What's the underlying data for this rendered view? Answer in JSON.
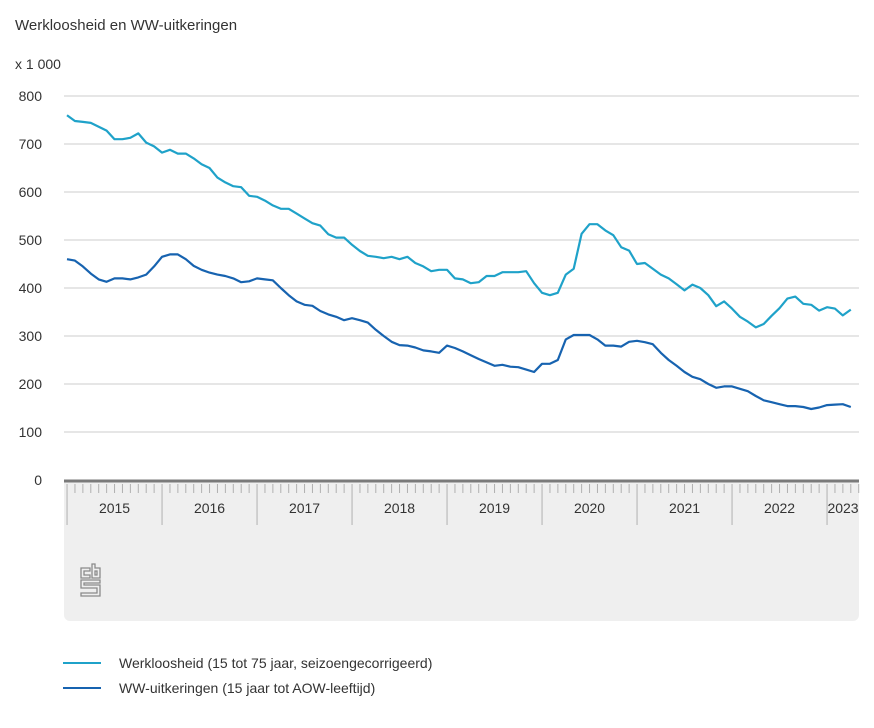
{
  "chart_data": {
    "type": "line",
    "title": "Werkloosheid en WW-uitkeringen",
    "ylabel": "x 1 000",
    "xlabel": "",
    "ylim": [
      0,
      800
    ],
    "yticks": [
      0,
      100,
      200,
      300,
      400,
      500,
      600,
      700,
      800
    ],
    "grid": true,
    "x_start": "2015-01",
    "x_frequency": "monthly",
    "x_tick_labels": [
      "2015",
      "2016",
      "2017",
      "2018",
      "2019",
      "2020",
      "2021",
      "2022",
      "2023"
    ],
    "legend_position": "bottom",
    "series": [
      {
        "name": "Werkloosheid (15 tot 75 jaar, seizoengecorrigeerd)",
        "color": "#1fa2c9",
        "values": [
          760,
          748,
          746,
          744,
          736,
          728,
          710,
          710,
          713,
          722,
          703,
          695,
          682,
          688,
          680,
          680,
          670,
          658,
          650,
          630,
          620,
          612,
          610,
          592,
          590,
          582,
          572,
          565,
          565,
          555,
          545,
          535,
          530,
          512,
          505,
          505,
          490,
          477,
          467,
          465,
          462,
          465,
          460,
          465,
          452,
          445,
          435,
          438,
          438,
          420,
          418,
          410,
          412,
          425,
          425,
          433,
          433,
          433,
          435,
          410,
          390,
          385,
          390,
          428,
          440,
          513,
          533,
          533,
          520,
          510,
          485,
          478,
          450,
          452,
          440,
          428,
          420,
          408,
          395,
          407,
          400,
          385,
          362,
          372,
          357,
          340,
          330,
          318,
          325,
          342,
          358,
          378,
          382,
          367,
          365,
          353,
          360,
          357,
          343,
          355
        ]
      },
      {
        "name": "WW-uitkeringen (15 jaar tot AOW-leeftijd)",
        "color": "#1763b0",
        "values": [
          460,
          457,
          445,
          430,
          418,
          413,
          420,
          420,
          418,
          422,
          428,
          445,
          465,
          470,
          470,
          460,
          446,
          438,
          432,
          428,
          425,
          420,
          412,
          414,
          420,
          418,
          416,
          400,
          385,
          372,
          365,
          363,
          352,
          345,
          340,
          333,
          337,
          333,
          328,
          313,
          300,
          288,
          281,
          280,
          276,
          270,
          268,
          265,
          280,
          275,
          268,
          260,
          252,
          245,
          238,
          240,
          236,
          235,
          230,
          225,
          242,
          242,
          250,
          293,
          302,
          302,
          302,
          293,
          280,
          280,
          278,
          288,
          290,
          287,
          283,
          265,
          250,
          238,
          225,
          215,
          210,
          200,
          192,
          195,
          195,
          190,
          185,
          175,
          166,
          162,
          158,
          154,
          154,
          152,
          148,
          151,
          156,
          157,
          158,
          152
        ]
      }
    ]
  },
  "logo": {
    "name": "cbs-logo"
  }
}
